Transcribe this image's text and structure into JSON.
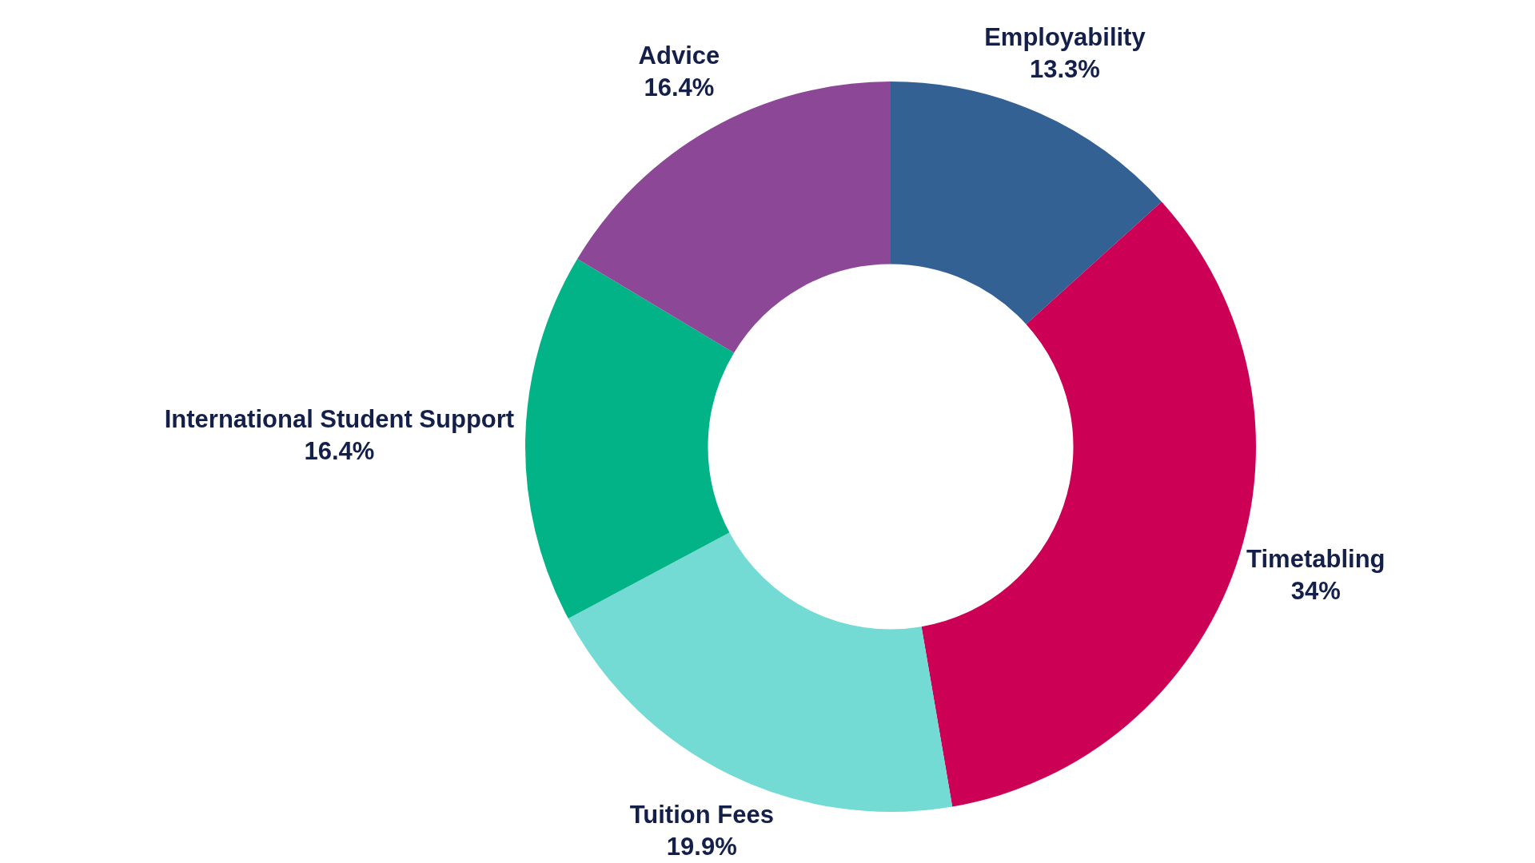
{
  "chart_data": {
    "type": "donut",
    "categories": [
      "Employability",
      "Timetabling",
      "Tuition Fees",
      "International Student Support",
      "Advice"
    ],
    "values": [
      13.3,
      34,
      19.9,
      16.4,
      16.4
    ],
    "value_labels": [
      "13.3%",
      "34%",
      "19.9%",
      "16.4%",
      "16.4%"
    ],
    "colors": [
      "#336194",
      "#cc0055",
      "#74dad4",
      "#03b388",
      "#8c4896"
    ],
    "legend": false
  }
}
